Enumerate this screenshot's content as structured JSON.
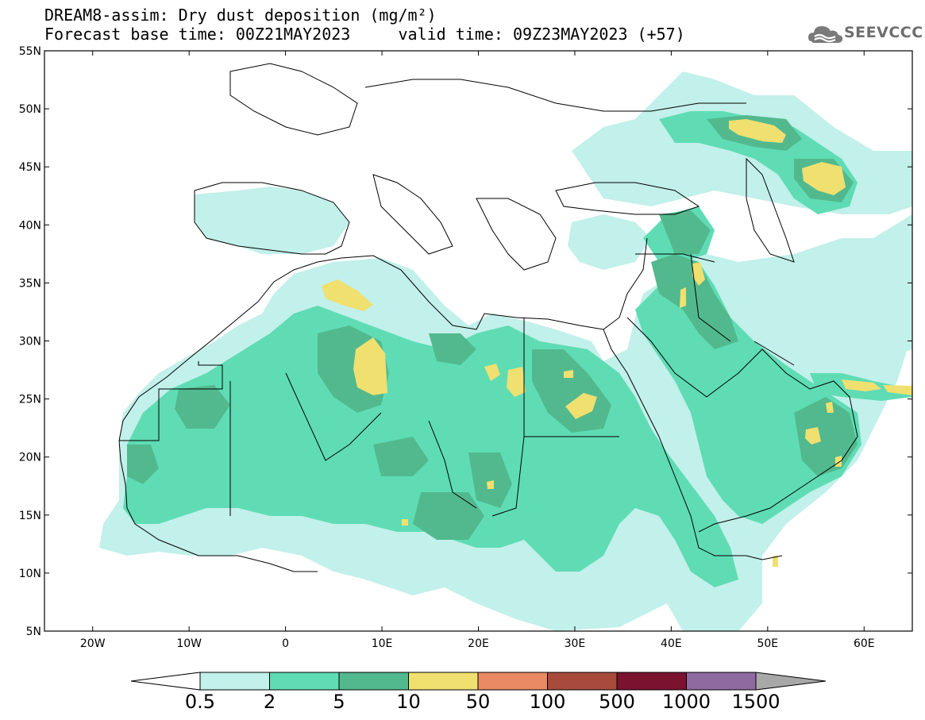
{
  "title": {
    "line1": "DREAM8-assim: Dry dust deposition (mg/m²)",
    "line2": "Forecast base time: 00Z21MAY2023     valid time: 09Z23MAY2023 (+57)"
  },
  "logo": {
    "text": "SEEVCCC",
    "icon": "cloud-icon"
  },
  "map": {
    "lon_range": [
      -25,
      65
    ],
    "lat_range": [
      5,
      55
    ],
    "lon_ticks": [
      {
        "value": -20,
        "label": "20W"
      },
      {
        "value": -10,
        "label": "10W"
      },
      {
        "value": 0,
        "label": "0"
      },
      {
        "value": 10,
        "label": "10E"
      },
      {
        "value": 20,
        "label": "20E"
      },
      {
        "value": 30,
        "label": "30E"
      },
      {
        "value": 40,
        "label": "40E"
      },
      {
        "value": 50,
        "label": "50E"
      },
      {
        "value": 60,
        "label": "60E"
      }
    ],
    "lat_ticks": [
      {
        "value": 55,
        "label": "55N"
      },
      {
        "value": 50,
        "label": "50N"
      },
      {
        "value": 45,
        "label": "45N"
      },
      {
        "value": 40,
        "label": "40N"
      },
      {
        "value": 35,
        "label": "35N"
      },
      {
        "value": 30,
        "label": "30N"
      },
      {
        "value": 25,
        "label": "25N"
      },
      {
        "value": 20,
        "label": "20N"
      },
      {
        "value": 15,
        "label": "15N"
      },
      {
        "value": 10,
        "label": "10N"
      },
      {
        "value": 5,
        "label": "5N"
      }
    ]
  },
  "colorbar": {
    "labels": [
      "0.5",
      "2",
      "5",
      "10",
      "50",
      "100",
      "500",
      "1000",
      "1500"
    ],
    "colors": [
      "#ffffff",
      "#c2f0ea",
      "#5fdcb4",
      "#52b98e",
      "#f0e070",
      "#e98a64",
      "#a84a3c",
      "#7a1230",
      "#8f6aa0",
      "#a8a8a8"
    ],
    "min_arrow_color": "#ffffff",
    "max_arrow_color": "#a8a8a8"
  },
  "chart_data": {
    "type": "heatmap",
    "variable": "Dry dust deposition",
    "units": "mg/m²",
    "levels": [
      0.5,
      2,
      5,
      10,
      50,
      100,
      500,
      1000,
      1500
    ],
    "region": {
      "lon": [
        -25,
        65
      ],
      "lat": [
        5,
        55
      ]
    },
    "max_deposition_areas": [
      {
        "lon": 7.5,
        "lat": 34.5,
        "level": "10-50"
      },
      {
        "lon": 9.5,
        "lat": 28.0,
        "level": "10-50"
      },
      {
        "lon": 21.0,
        "lat": 26.0,
        "level": "10-50"
      },
      {
        "lon": 31.0,
        "lat": 24.5,
        "level": "10-50"
      },
      {
        "lon": 48.0,
        "lat": 50.0,
        "level": "10-50"
      },
      {
        "lon": 54.0,
        "lat": 45.0,
        "level": "10-50"
      },
      {
        "lon": 42.0,
        "lat": 35.5,
        "level": "10-50"
      },
      {
        "lon": 55.5,
        "lat": 21.5,
        "level": "10-50"
      },
      {
        "lon": 62.0,
        "lat": 25.5,
        "level": "10-50"
      }
    ]
  }
}
